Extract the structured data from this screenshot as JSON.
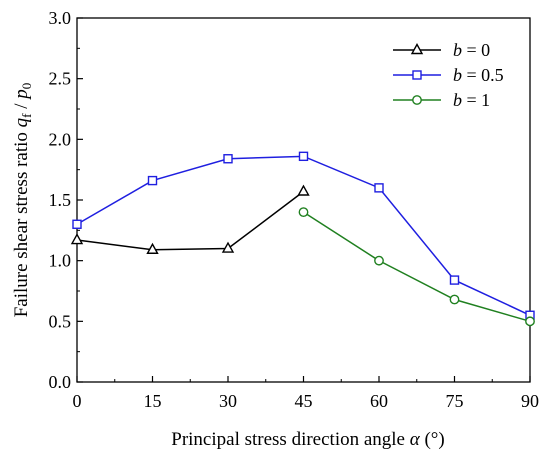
{
  "chart_data": {
    "type": "line",
    "xlabel": "Principal stress direction angle α (°)",
    "ylabel": "Failure shear stress ratio q_f / p_0",
    "xlim": [
      0,
      90
    ],
    "ylim": [
      0.0,
      3.0
    ],
    "x_ticks": [
      0,
      15,
      30,
      45,
      60,
      75,
      90
    ],
    "y_ticks": [
      0.0,
      0.5,
      1.0,
      1.5,
      2.0,
      2.5,
      3.0
    ],
    "y_tick_labels": [
      "0.0",
      "0.5",
      "1.0",
      "1.5",
      "2.0",
      "2.5",
      "3.0"
    ],
    "grid": false,
    "legend_position": "top-right",
    "series": [
      {
        "name": "b = 0",
        "marker": "triangle",
        "color": "#000000",
        "x": [
          0,
          15,
          30,
          45
        ],
        "y": [
          1.17,
          1.09,
          1.1,
          1.57
        ]
      },
      {
        "name": "b = 0.5",
        "marker": "square",
        "color": "#1f1fe0",
        "x": [
          0,
          15,
          30,
          45,
          60,
          75,
          90
        ],
        "y": [
          1.3,
          1.66,
          1.84,
          1.86,
          1.6,
          0.84,
          0.55
        ]
      },
      {
        "name": "b = 1",
        "marker": "circle",
        "color": "#208020",
        "x": [
          45,
          60,
          75,
          90
        ],
        "y": [
          1.4,
          1.0,
          0.68,
          0.5
        ]
      }
    ]
  }
}
